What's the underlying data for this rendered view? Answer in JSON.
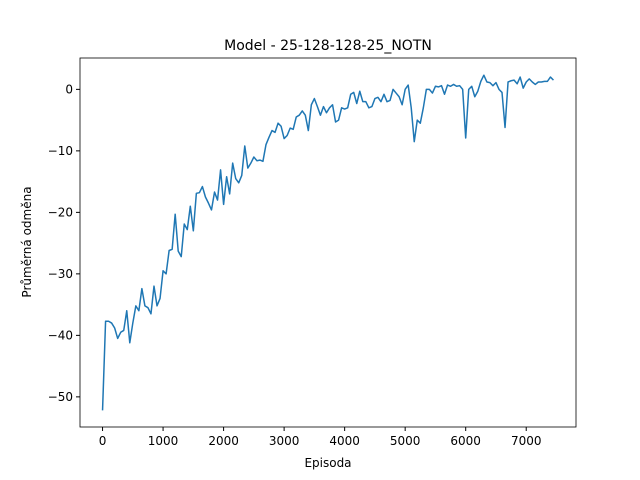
{
  "chart_data": {
    "type": "line",
    "title": "Model - 25-128-128-25_NOTN",
    "x_label": "Episoda",
    "y_label": "Průměrná odměna",
    "x": [
      0,
      50,
      100,
      150,
      200,
      250,
      300,
      350,
      400,
      450,
      500,
      550,
      600,
      650,
      700,
      750,
      800,
      850,
      900,
      950,
      1000,
      1050,
      1100,
      1150,
      1200,
      1250,
      1300,
      1350,
      1400,
      1450,
      1500,
      1550,
      1600,
      1650,
      1700,
      1750,
      1800,
      1850,
      1900,
      1950,
      2000,
      2050,
      2100,
      2150,
      2200,
      2250,
      2300,
      2350,
      2400,
      2450,
      2500,
      2550,
      2600,
      2650,
      2700,
      2750,
      2800,
      2850,
      2900,
      2950,
      3000,
      3050,
      3100,
      3150,
      3200,
      3250,
      3300,
      3350,
      3400,
      3450,
      3500,
      3550,
      3600,
      3650,
      3700,
      3750,
      3800,
      3850,
      3900,
      3950,
      4000,
      4050,
      4100,
      4150,
      4200,
      4250,
      4300,
      4350,
      4400,
      4450,
      4500,
      4550,
      4600,
      4650,
      4700,
      4750,
      4800,
      4850,
      4900,
      4950,
      5000,
      5050,
      5100,
      5150,
      5200,
      5250,
      5300,
      5350,
      5400,
      5450,
      5500,
      5550,
      5600,
      5650,
      5700,
      5750,
      5800,
      5850,
      5900,
      5950,
      6000,
      6050,
      6100,
      6150,
      6200,
      6250,
      6300,
      6350,
      6400,
      6450,
      6500,
      6550,
      6600,
      6650,
      6700,
      6750,
      6800,
      6850,
      6900,
      6950,
      7000,
      7050,
      7100,
      7150,
      7200,
      7250,
      7300,
      7350,
      7400,
      7450
    ],
    "series": [
      {
        "color": "#1f77b4",
        "values": [
          -52.2,
          -37.7,
          -37.7,
          -38,
          -38.8,
          -40.5,
          -39.5,
          -39.2,
          -36,
          -41.2,
          -38,
          -35.2,
          -36,
          -32.4,
          -35.2,
          -35.5,
          -36.5,
          -32,
          -35.2,
          -34,
          -29.5,
          -30,
          -26.2,
          -26,
          -20.3,
          -26.3,
          -27.2,
          -21.9,
          -22.8,
          -19,
          -23,
          -16.9,
          -16.8,
          -15.8,
          -17.5,
          -18.5,
          -19.6,
          -16.7,
          -18,
          -13.1,
          -18.7,
          -14.2,
          -17,
          -12,
          -14.5,
          -15.2,
          -14,
          -9.2,
          -12.8,
          -12,
          -11,
          -11.6,
          -11.5,
          -11.7,
          -9,
          -7.8,
          -6.7,
          -7,
          -5.5,
          -6,
          -8,
          -7.5,
          -6.3,
          -6.5,
          -4.5,
          -4.2,
          -3.5,
          -4.2,
          -6.7,
          -2.5,
          -1.5,
          -2.8,
          -4.2,
          -2.8,
          -3.8,
          -3,
          -2.5,
          -5.3,
          -5,
          -3,
          -3.2,
          -3,
          -0.8,
          -0.5,
          -2.3,
          -0.3,
          -2,
          -2,
          -3,
          -2.8,
          -1.5,
          -1.3,
          -2,
          -0.8,
          -2,
          -1.8,
          0,
          -0.6,
          -1.2,
          -2.5,
          0,
          0.7,
          -3,
          -8.5,
          -5,
          -5.5,
          -3,
          0,
          0,
          -0.6,
          0.5,
          0.4,
          0.6,
          -0.8,
          0.7,
          0.5,
          0.8,
          0.5,
          0.6,
          0,
          -7.9,
          0,
          0.5,
          -1.2,
          -0.3,
          1.3,
          2.3,
          1.2,
          1.1,
          0.6,
          1.1,
          0,
          -0.5,
          -6.2,
          1.2,
          1.4,
          1.5,
          0.9,
          2,
          0.2,
          1.2,
          1.7,
          1.2,
          0.8,
          1.2,
          1.2,
          1.3,
          1.3,
          2,
          1.5
        ]
      }
    ],
    "xlim": [
      -372.5,
      7822.5
    ],
    "ylim": [
      -54.9,
      5.1
    ],
    "xticks": [
      0,
      1000,
      2000,
      3000,
      4000,
      5000,
      6000,
      7000
    ],
    "yticks": [
      {
        "value": -50,
        "label": "−50"
      },
      {
        "value": -40,
        "label": "−40"
      },
      {
        "value": -30,
        "label": "−30"
      },
      {
        "value": -20,
        "label": "−20"
      },
      {
        "value": -10,
        "label": "−10"
      },
      0
    ]
  }
}
